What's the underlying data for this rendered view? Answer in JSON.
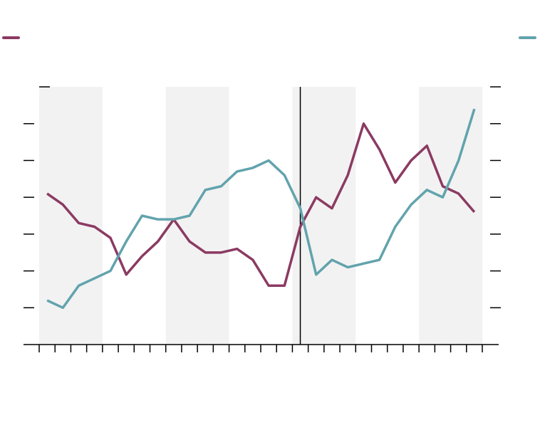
{
  "chart_data": {
    "type": "line",
    "x": [
      0.5,
      1.5,
      2.5,
      3.5,
      4.5,
      5.5,
      6.5,
      7.5,
      8.5,
      9.5,
      10.5,
      11.5,
      12.5,
      13.5,
      14.5,
      15.5,
      16.5,
      17.5,
      18.5,
      19.5,
      20.5,
      21.5,
      22.5,
      23.5,
      24.5,
      25.5,
      26.5,
      27.5
    ],
    "xlim": [
      0,
      28
    ],
    "xticks": [
      0,
      1,
      2,
      3,
      4,
      5,
      6,
      7,
      8,
      9,
      10,
      11,
      12,
      13,
      14,
      15,
      16,
      17,
      18,
      19,
      20,
      21,
      22,
      23,
      24,
      25,
      26,
      27,
      28
    ],
    "ylim": [
      0,
      7
    ],
    "yticks": [
      1,
      2,
      3,
      4,
      5,
      6,
      7
    ],
    "y2lim": [
      0,
      7
    ],
    "y2ticks": [
      1,
      2,
      3,
      4,
      5,
      6,
      7
    ],
    "shaded_ranges": [
      [
        0,
        4
      ],
      [
        8,
        12
      ],
      [
        16,
        20
      ],
      [
        24,
        28
      ]
    ],
    "vline": 16.5,
    "series": [
      {
        "color": "#8b3a62",
        "values": [
          4.1,
          3.8,
          3.3,
          3.2,
          2.9,
          1.9,
          2.4,
          2.8,
          3.4,
          2.8,
          2.5,
          2.5,
          2.6,
          2.3,
          1.6,
          1.6,
          3.2,
          4.0,
          3.7,
          4.6,
          6.0,
          5.3,
          4.4,
          5.0,
          5.4,
          4.3,
          4.1,
          3.6
        ]
      },
      {
        "color": "#62a3ad",
        "axis": "y2",
        "values": [
          1.2,
          1.0,
          1.6,
          1.8,
          2.0,
          2.8,
          3.5,
          3.4,
          3.4,
          3.5,
          4.2,
          4.3,
          4.7,
          4.8,
          5.0,
          4.6,
          3.7,
          1.9,
          2.3,
          2.1,
          2.2,
          2.3,
          3.2,
          3.8,
          4.2,
          4.0,
          5.0,
          6.4
        ]
      }
    ]
  }
}
